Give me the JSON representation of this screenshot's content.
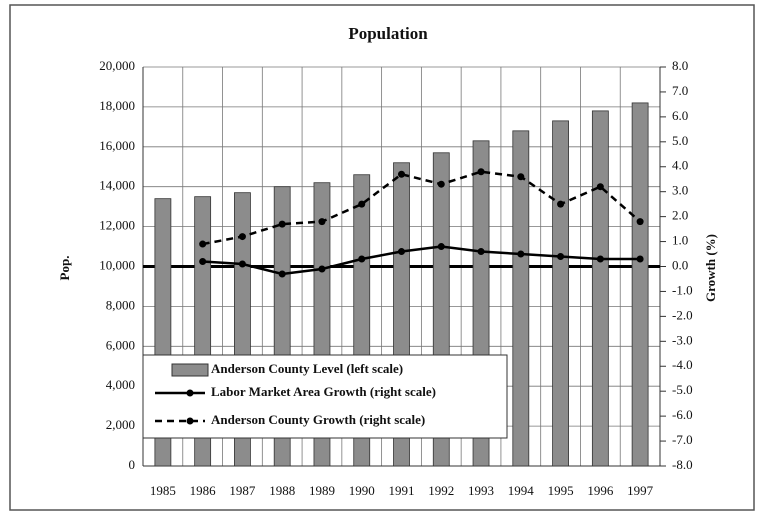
{
  "chart_data": {
    "type": "bar",
    "title": "Population",
    "y_label": "Pop.",
    "y2_label": "Growth (%)",
    "categories": [
      "1985",
      "1986",
      "1987",
      "1988",
      "1989",
      "1990",
      "1991",
      "1992",
      "1993",
      "1994",
      "1995",
      "1996",
      "1997"
    ],
    "series": [
      {
        "name": "Anderson County Level (left scale)",
        "type": "bar",
        "color": "#8c8c8c",
        "values": [
          13400,
          13500,
          13700,
          14000,
          14200,
          14600,
          15200,
          15700,
          16300,
          16800,
          17300,
          17800,
          18200
        ]
      },
      {
        "name": "Labor Market Area Growth (right scale)",
        "type": "line",
        "axis": "y2",
        "color": "#000000",
        "line_style": "solid",
        "values": [
          null,
          0.2,
          0.1,
          -0.3,
          -0.1,
          0.3,
          0.6,
          0.8,
          0.6,
          0.5,
          0.4,
          0.3,
          0.3
        ]
      },
      {
        "name": "Anderson County Growth (right scale)",
        "type": "line",
        "axis": "y2",
        "color": "#000000",
        "line_style": "dashed",
        "values": [
          null,
          0.9,
          1.2,
          1.7,
          1.8,
          2.5,
          3.7,
          3.3,
          3.8,
          3.6,
          2.5,
          3.2,
          1.8
        ]
      }
    ],
    "ylim": [
      0,
      20000
    ],
    "yticks": [
      0,
      {
        "value": 2000,
        "label": "2,000"
      },
      {
        "value": 4000,
        "label": "4,000"
      },
      {
        "value": 6000,
        "label": "6,000"
      },
      {
        "value": 8000,
        "label": "8,000"
      },
      {
        "value": 10000,
        "label": "10,000"
      },
      {
        "value": 12000,
        "label": "12,000"
      },
      {
        "value": 14000,
        "label": "14,000"
      },
      {
        "value": 16000,
        "label": "16,000"
      },
      {
        "value": 18000,
        "label": "18,000"
      },
      {
        "value": 20000,
        "label": "20,000"
      }
    ],
    "y2lim": [
      -8,
      8
    ],
    "y2ticks": [
      {
        "value": -8,
        "label": "-8.0"
      },
      {
        "value": -7,
        "label": "-7.0"
      },
      {
        "value": -6,
        "label": "-6.0"
      },
      {
        "value": -5,
        "label": "-5.0"
      },
      {
        "value": -4,
        "label": "-4.0"
      },
      {
        "value": -3,
        "label": "-3.0"
      },
      {
        "value": -2,
        "label": "-2.0"
      },
      {
        "value": -1,
        "label": "-1.0"
      },
      {
        "value": 0,
        "label": "0.0"
      },
      {
        "value": 1,
        "label": "1.0"
      },
      {
        "value": 2,
        "label": "2.0"
      },
      {
        "value": 3,
        "label": "3.0"
      },
      {
        "value": 4,
        "label": "4.0"
      },
      {
        "value": 5,
        "label": "5.0"
      },
      {
        "value": 6,
        "label": "6.0"
      },
      {
        "value": 7,
        "label": "7.0"
      },
      {
        "value": 8,
        "label": "8.0"
      }
    ],
    "grid": true,
    "legend": "bottom-left"
  }
}
